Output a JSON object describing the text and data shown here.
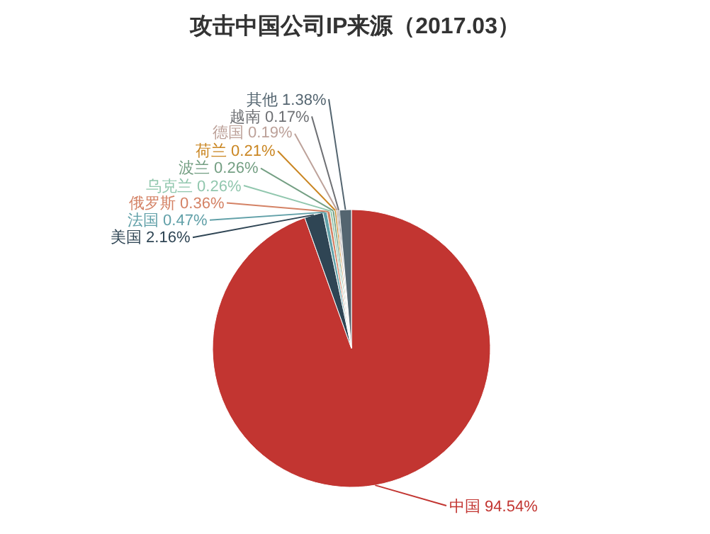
{
  "chart_data": {
    "type": "pie",
    "title": "攻击中国公司IP来源（2017.03）",
    "categories": [
      "中国",
      "美国",
      "法国",
      "俄罗斯",
      "乌克兰",
      "波兰",
      "荷兰",
      "德国",
      "越南",
      "其他"
    ],
    "values": [
      94.54,
      2.16,
      0.47,
      0.36,
      0.26,
      0.26,
      0.21,
      0.19,
      0.17,
      1.38
    ],
    "value_labels": [
      "94.54%",
      "2.16%",
      "0.47%",
      "0.36%",
      "0.26%",
      "0.26%",
      "0.21%",
      "0.19%",
      "0.17%",
      "1.38%"
    ],
    "colors": [
      "#c23531",
      "#2f4554",
      "#61a0a8",
      "#d48265",
      "#91c7ae",
      "#749f83",
      "#ca8622",
      "#bda29a",
      "#6e7074",
      "#546570"
    ],
    "legend": false
  }
}
